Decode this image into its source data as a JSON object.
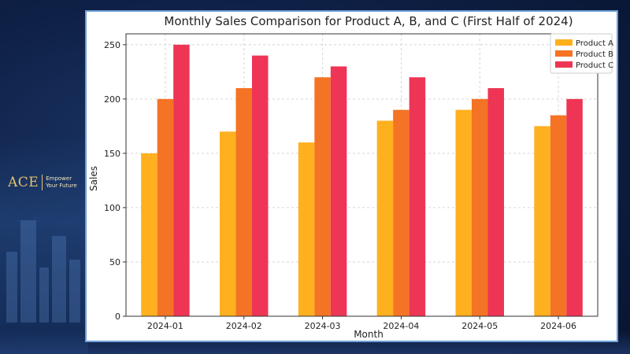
{
  "brand": {
    "logo_text": "ACE",
    "tagline_line1": "Empower",
    "tagline_line2": "Your Future"
  },
  "chart_data": {
    "type": "bar",
    "title": "Monthly Sales Comparison for Product A, B, and C (First Half of 2024)",
    "xlabel": "Month",
    "ylabel": "Sales",
    "categories": [
      "2024-01",
      "2024-02",
      "2024-03",
      "2024-04",
      "2024-05",
      "2024-06"
    ],
    "series": [
      {
        "name": "Product A",
        "color": "#FFB01F",
        "values": [
          150,
          170,
          160,
          180,
          190,
          175
        ]
      },
      {
        "name": "Product B",
        "color": "#F57325",
        "values": [
          200,
          210,
          220,
          190,
          200,
          185
        ]
      },
      {
        "name": "Product C",
        "color": "#EE3556",
        "values": [
          250,
          240,
          230,
          220,
          210,
          200
        ]
      }
    ],
    "ylim": [
      0,
      260
    ],
    "yticks": [
      0,
      50,
      100,
      150,
      200,
      250
    ],
    "grid": true,
    "legend": "top-right"
  }
}
